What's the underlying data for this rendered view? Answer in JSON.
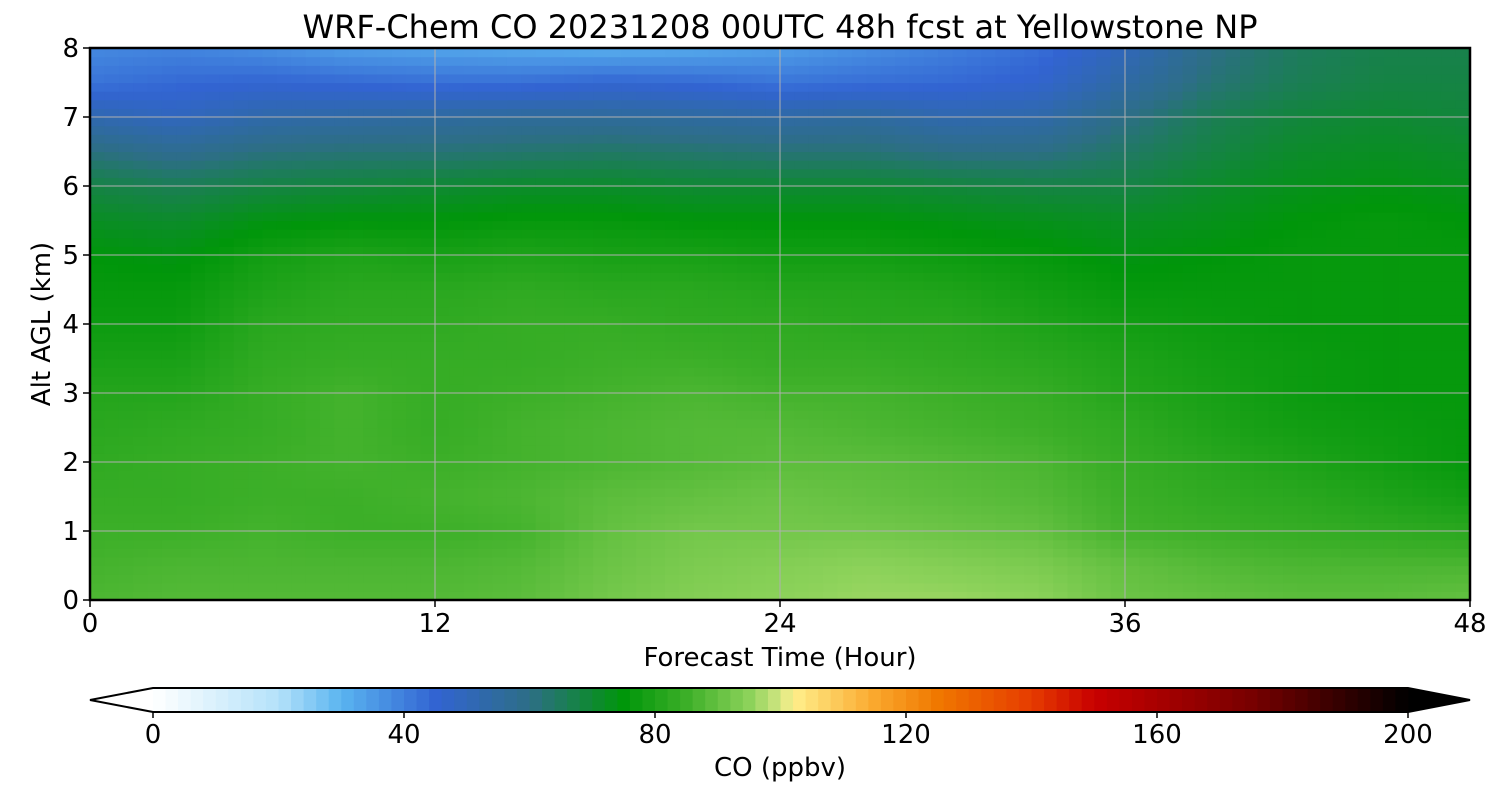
{
  "chart_data": {
    "type": "heatmap",
    "title": "WRF-Chem CO  20231208 00UTC 48h fcst at Yellowstone NP",
    "xlabel": "Forecast Time (Hour)",
    "ylabel": "Alt AGL (km)",
    "xlim": [
      0,
      48
    ],
    "ylim": [
      0,
      8
    ],
    "xticks": [
      0,
      12,
      24,
      36,
      48
    ],
    "yticks": [
      0,
      1,
      2,
      3,
      4,
      5,
      6,
      7,
      8
    ],
    "grid": true,
    "x": [
      0,
      3,
      6,
      9,
      12,
      15,
      18,
      21,
      24,
      27,
      30,
      33,
      36,
      39,
      42,
      45,
      48
    ],
    "y": [
      0,
      0.5,
      1,
      1.5,
      2,
      2.5,
      3,
      3.5,
      4,
      4.5,
      5,
      5.5,
      6,
      6.5,
      7,
      7.5,
      8
    ],
    "z": [
      [
        87,
        88,
        88,
        88,
        88,
        89,
        92,
        94,
        95,
        96,
        96,
        95,
        91,
        90,
        89,
        89,
        90
      ],
      [
        86,
        87,
        87,
        87,
        87,
        88,
        91,
        93,
        94,
        95,
        94,
        93,
        90,
        88,
        87,
        87,
        87
      ],
      [
        85,
        85,
        86,
        85,
        85,
        86,
        90,
        92,
        92,
        92,
        91,
        90,
        86,
        85,
        84,
        83,
        82
      ],
      [
        84,
        84,
        85,
        85,
        86,
        87,
        89,
        90,
        91,
        90,
        89,
        88,
        85,
        83,
        82,
        80,
        78
      ],
      [
        83,
        84,
        85,
        86,
        85,
        86,
        87,
        88,
        89,
        89,
        88,
        87,
        84,
        82,
        80,
        78,
        76
      ],
      [
        82,
        83,
        84,
        86,
        84,
        86,
        87,
        88,
        88,
        87,
        86,
        85,
        83,
        80,
        78,
        77,
        76
      ],
      [
        81,
        81,
        84,
        86,
        84,
        85,
        86,
        87,
        86,
        86,
        85,
        84,
        81,
        79,
        77,
        76,
        76
      ],
      [
        79,
        79,
        83,
        84,
        84,
        84,
        85,
        85,
        84,
        84,
        83,
        82,
        80,
        78,
        77,
        76,
        76
      ],
      [
        77,
        77,
        82,
        83,
        83,
        84,
        84,
        83,
        83,
        82,
        82,
        80,
        78,
        77,
        76,
        76,
        76
      ],
      [
        76,
        76,
        80,
        82,
        82,
        83,
        82,
        82,
        81,
        81,
        80,
        78,
        76,
        76,
        76,
        76,
        76
      ],
      [
        75,
        74,
        78,
        80,
        79,
        80,
        79,
        79,
        78,
        78,
        77,
        76,
        74,
        75,
        76,
        76,
        76
      ],
      [
        72,
        71,
        74,
        75,
        75,
        76,
        76,
        75,
        75,
        75,
        74,
        73,
        72,
        73,
        75,
        76,
        75
      ],
      [
        68,
        66,
        68,
        69,
        70,
        71,
        71,
        70,
        70,
        70,
        69,
        68,
        68,
        71,
        73,
        74,
        73
      ],
      [
        61,
        58,
        61,
        62,
        62,
        63,
        64,
        63,
        62,
        62,
        60,
        60,
        64,
        68,
        71,
        72,
        71
      ],
      [
        52,
        49,
        53,
        54,
        55,
        56,
        56,
        55,
        54,
        55,
        52,
        53,
        60,
        66,
        69,
        70,
        69
      ],
      [
        42,
        44,
        45,
        44,
        43,
        43,
        45,
        44,
        42,
        43,
        44,
        46,
        54,
        62,
        66,
        68,
        68
      ],
      [
        38,
        39,
        37,
        34,
        33,
        32,
        31,
        32,
        34,
        37,
        40,
        43,
        50,
        60,
        65,
        67,
        67
      ]
    ],
    "colorbar": {
      "label": "CO  (ppbv)",
      "ticks": [
        0,
        40,
        80,
        120,
        160,
        200
      ],
      "min": 0,
      "max": 200,
      "extend": "both",
      "colors": [
        "#ffffff",
        "#b4e2fa",
        "#5ab4f0",
        "#3264d2",
        "#2d6e86",
        "#00960a",
        "#3caf28",
        "#8cd25a",
        "#d2e682",
        "#fff08c",
        "#faa82d",
        "#f07800",
        "#e63c00",
        "#c80000",
        "#780000",
        "#000000"
      ],
      "color_stops": [
        0,
        20,
        30,
        45,
        60,
        75,
        85,
        95,
        100,
        102,
        115,
        125,
        140,
        150,
        175,
        200
      ]
    }
  }
}
